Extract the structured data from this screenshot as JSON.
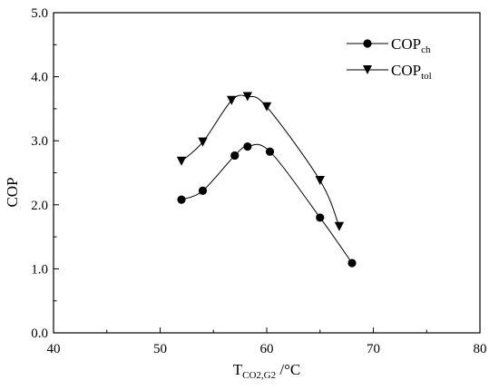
{
  "chart_data": {
    "type": "line",
    "xlabel": {
      "main": "T",
      "sub": "CO2,G2",
      "suffix": " /°C"
    },
    "ylabel": "COP",
    "xlim": [
      40,
      80
    ],
    "ylim": [
      0,
      5
    ],
    "xticks": [
      "40",
      "50",
      "60",
      "70",
      "80"
    ],
    "yticks": [
      "0.0",
      "1.0",
      "2.0",
      "3.0",
      "4.0",
      "5.0"
    ],
    "grid": false,
    "legend_position": "top-right",
    "series": [
      {
        "name": "COP",
        "name_sub": "ch",
        "marker": "circle",
        "x": [
          52,
          54,
          57,
          58.2,
          60.3,
          65,
          68
        ],
        "y": [
          2.08,
          2.22,
          2.77,
          2.91,
          2.83,
          1.8,
          1.09
        ]
      },
      {
        "name": "COP",
        "name_sub": "tol",
        "marker": "triangle-down",
        "x": [
          52,
          54,
          56.7,
          58.2,
          60,
          65,
          66.8
        ],
        "y": [
          2.68,
          2.98,
          3.63,
          3.69,
          3.53,
          2.38,
          1.66
        ]
      }
    ]
  }
}
